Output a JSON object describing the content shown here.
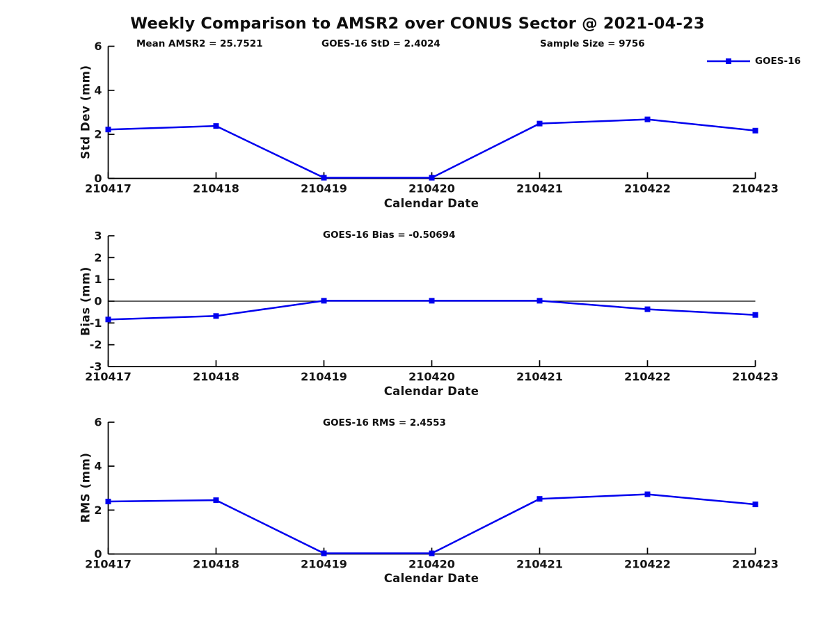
{
  "title": "Weekly Comparison to AMSR2 over CONUS Sector @ 2021-04-23",
  "legend": {
    "label": "GOES-16",
    "color": "#0000EE",
    "marker": "square",
    "position": "top-right"
  },
  "chart_data": [
    {
      "type": "line",
      "annotations": [
        "Mean AMSR2 = 25.7521",
        "GOES-16 StD = 2.4024",
        "Sample Size = 9756"
      ],
      "xlabel": "Calendar Date",
      "ylabel": "Std Dev (mm)",
      "x": [
        "210417",
        "210418",
        "210419",
        "210420",
        "210421",
        "210422",
        "210423"
      ],
      "ylim": [
        0,
        6
      ],
      "yticks": [
        0,
        2,
        4,
        6
      ],
      "grid": false,
      "zero_line": false,
      "series": [
        {
          "name": "GOES-16",
          "color": "#0000EE",
          "marker": "square",
          "values": [
            2.22,
            2.38,
            0.03,
            0.03,
            2.49,
            2.68,
            2.17
          ]
        }
      ]
    },
    {
      "type": "line",
      "annotations": [
        "GOES-16 Bias  = -0.50694"
      ],
      "xlabel": "Calendar Date",
      "ylabel": "Bias (mm)",
      "x": [
        "210417",
        "210418",
        "210419",
        "210420",
        "210421",
        "210422",
        "210423"
      ],
      "ylim": [
        -3,
        3
      ],
      "yticks": [
        -3,
        -2,
        -1,
        0,
        1,
        2,
        3
      ],
      "grid": false,
      "zero_line": true,
      "series": [
        {
          "name": "GOES-16",
          "color": "#0000EE",
          "marker": "square",
          "values": [
            -0.84,
            -0.68,
            0.02,
            0.02,
            0.02,
            -0.37,
            -0.63
          ]
        }
      ]
    },
    {
      "type": "line",
      "annotations": [
        "GOES-16 RMS = 2.4553"
      ],
      "xlabel": "Calendar Date",
      "ylabel": "RMS (mm)",
      "x": [
        "210417",
        "210418",
        "210419",
        "210420",
        "210421",
        "210422",
        "210423"
      ],
      "ylim": [
        0,
        6
      ],
      "yticks": [
        0,
        2,
        4,
        6
      ],
      "grid": false,
      "zero_line": false,
      "series": [
        {
          "name": "GOES-16",
          "color": "#0000EE",
          "marker": "square",
          "values": [
            2.39,
            2.45,
            0.03,
            0.03,
            2.51,
            2.72,
            2.26
          ]
        }
      ]
    }
  ]
}
